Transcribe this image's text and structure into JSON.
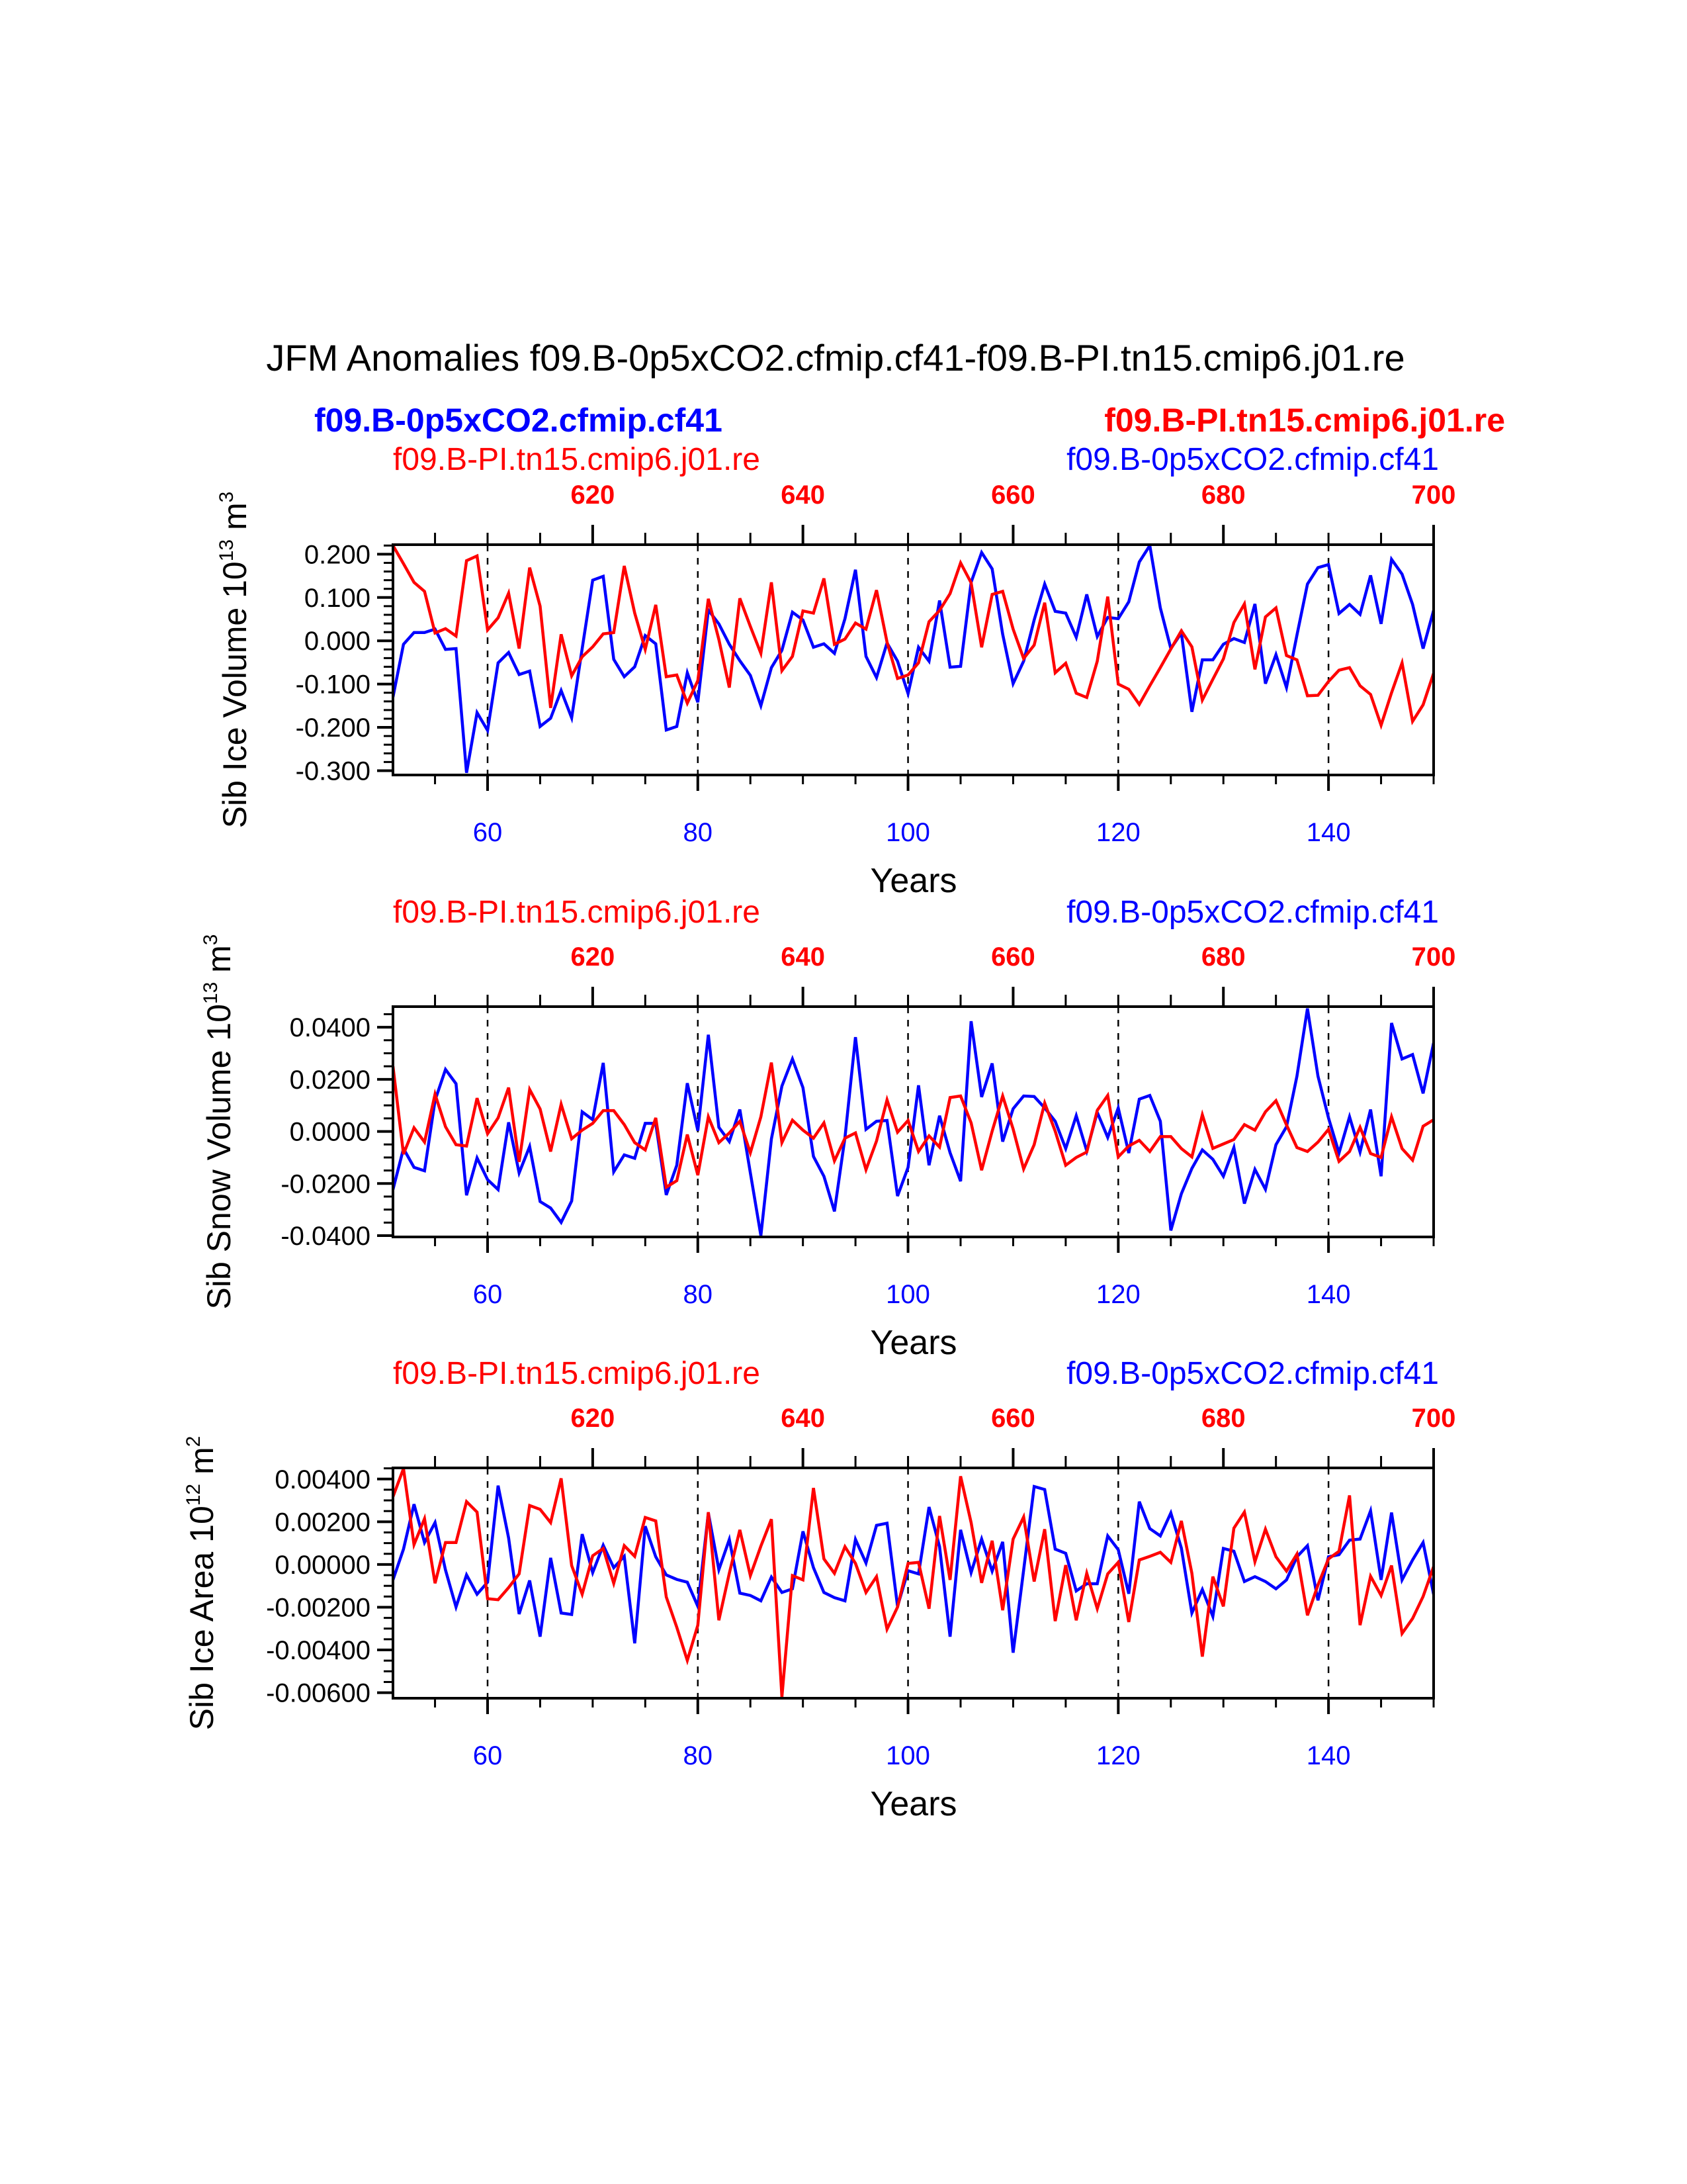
{
  "title": "JFM Anomalies f09.B-0p5xCO2.cfmip.cf41-f09.B-PI.tn15.cmip6.j01.re",
  "colors": {
    "ctrl": "#ff0000",
    "exp": "#0000ff",
    "axis": "#000000"
  },
  "chart_data": [
    {
      "type": "line",
      "x_start": 51,
      "x_end": 150,
      "xlim": [
        51,
        150
      ],
      "xticks": [
        60,
        80,
        100,
        120,
        140
      ],
      "xtick_labels": [
        "60",
        "80",
        "100",
        "120",
        "140"
      ],
      "top_xticks_years": [
        70,
        90,
        110,
        130,
        150
      ],
      "top_xtick_labels": [
        "620",
        "640",
        "660",
        "680",
        "700"
      ],
      "xlabel": "Years",
      "ylabel": {
        "text": "Sib Ice Volume 10",
        "exp1": "13",
        "unit": " m",
        "exp2": "3"
      },
      "ylim": [
        -0.31,
        0.222
      ],
      "yticks": [
        0.2,
        0.1,
        0.0,
        -0.1,
        -0.2,
        -0.3
      ],
      "ytick_labels": [
        "0.200",
        "0.100",
        "0.000",
        "-0.100",
        "-0.200",
        "-0.300"
      ],
      "yminor_step": 0.02,
      "left_label": "f09.B-PI.tn15.cmip6.j01.re",
      "right_label": "f09.B-0p5xCO2.cfmip.cf41",
      "left_bold_label": "f09.B-0p5xCO2.cfmip.cf41",
      "right_bold_label": "f09.B-PI.tn15.cmip6.j01.re",
      "series": [
        {
          "name": "f09.B-0p5xCO2.cfmip.cf41",
          "color": "#0000ff",
          "values": [
            -0.13,
            -0.008,
            0.019,
            0.019,
            0.027,
            -0.02,
            -0.018,
            -0.305,
            -0.166,
            -0.207,
            -0.051,
            -0.027,
            -0.078,
            -0.07,
            -0.198,
            -0.179,
            -0.115,
            -0.178,
            -0.018,
            0.14,
            0.149,
            -0.043,
            -0.083,
            -0.06,
            0.012,
            -0.007,
            -0.206,
            -0.198,
            -0.074,
            -0.142,
            0.071,
            0.039,
            -0.008,
            -0.046,
            -0.08,
            -0.15,
            -0.062,
            -0.022,
            0.066,
            0.048,
            -0.015,
            -0.007,
            -0.029,
            0.051,
            0.164,
            -0.036,
            -0.085,
            -0.005,
            -0.047,
            -0.122,
            -0.015,
            -0.047,
            0.093,
            -0.061,
            -0.059,
            0.135,
            0.204,
            0.166,
            0.015,
            -0.099,
            -0.047,
            0.048,
            0.131,
            0.068,
            0.064,
            0.008,
            0.107,
            0.01,
            0.054,
            0.051,
            0.09,
            0.182,
            0.22,
            0.076,
            -0.018,
            0.018,
            -0.164,
            -0.044,
            -0.044,
            -0.008,
            0.005,
            -0.004,
            0.085,
            -0.099,
            -0.032,
            -0.108,
            0.013,
            0.131,
            0.169,
            0.176,
            0.063,
            0.084,
            0.061,
            0.151,
            0.039,
            0.188,
            0.154,
            0.084,
            -0.018,
            0.07
          ]
        },
        {
          "name": "f09.B-PI.tn15.cmip6.j01.re",
          "color": "#ff0000",
          "values": [
            0.22,
            0.178,
            0.135,
            0.114,
            0.018,
            0.028,
            0.011,
            0.185,
            0.196,
            0.025,
            0.053,
            0.11,
            -0.018,
            0.169,
            0.08,
            -0.155,
            0.015,
            -0.081,
            -0.037,
            -0.014,
            0.016,
            0.019,
            0.173,
            0.064,
            -0.02,
            0.083,
            -0.083,
            -0.079,
            -0.144,
            -0.092,
            0.097,
            0.003,
            -0.108,
            0.098,
            0.033,
            -0.029,
            0.135,
            -0.069,
            -0.036,
            0.069,
            0.064,
            0.144,
            -0.008,
            0.004,
            0.041,
            0.027,
            0.117,
            -0.003,
            -0.087,
            -0.079,
            -0.051,
            0.044,
            0.07,
            0.109,
            0.18,
            0.134,
            -0.015,
            0.107,
            0.114,
            0.027,
            -0.041,
            -0.01,
            0.088,
            -0.074,
            -0.052,
            -0.121,
            -0.131,
            -0.047,
            0.102,
            -0.1,
            -0.112,
            -0.147,
            -0.104,
            -0.062,
            -0.019,
            0.023,
            -0.014,
            -0.137,
            -0.089,
            -0.042,
            0.042,
            0.085,
            -0.066,
            0.055,
            0.076,
            -0.034,
            -0.044,
            -0.127,
            -0.126,
            -0.094,
            -0.068,
            -0.062,
            -0.104,
            -0.124,
            -0.195,
            -0.12,
            -0.051,
            -0.186,
            -0.148,
            -0.075
          ]
        }
      ]
    },
    {
      "type": "line",
      "x_start": 51,
      "x_end": 150,
      "xlim": [
        51,
        150
      ],
      "xticks": [
        60,
        80,
        100,
        120,
        140
      ],
      "xtick_labels": [
        "60",
        "80",
        "100",
        "120",
        "140"
      ],
      "top_xticks_years": [
        70,
        90,
        110,
        130,
        150
      ],
      "top_xtick_labels": [
        "620",
        "640",
        "660",
        "680",
        "700"
      ],
      "xlabel": "Years",
      "ylabel": {
        "text": "Sib Snow Volume 10",
        "exp1": "13",
        "unit": " m",
        "exp2": "3"
      },
      "ylim": [
        -0.0405,
        0.0479
      ],
      "yticks": [
        0.04,
        0.02,
        0.0,
        -0.02,
        -0.04
      ],
      "ytick_labels": [
        "0.0400",
        "0.0200",
        "0.0000",
        "-0.0200",
        "-0.0400"
      ],
      "yminor_step": 0.005,
      "left_label": "f09.B-PI.tn15.cmip6.j01.re",
      "right_label": "f09.B-0p5xCO2.cfmip.cf41",
      "series": [
        {
          "name": "f09.B-0p5xCO2.cfmip.cf41",
          "color": "#0000ff",
          "values": [
            -0.0223,
            -0.0066,
            -0.0138,
            -0.0151,
            0.0119,
            0.0238,
            0.0183,
            -0.0245,
            -0.0102,
            -0.0185,
            -0.0223,
            0.0035,
            -0.0159,
            -0.0058,
            -0.0269,
            -0.0294,
            -0.0349,
            -0.0267,
            0.0075,
            0.0045,
            0.0263,
            -0.0155,
            -0.009,
            -0.0103,
            0.0031,
            0.0031,
            -0.0244,
            -0.013,
            0.0185,
            0.0003,
            0.0371,
            0.0016,
            -0.0039,
            0.0084,
            -0.0159,
            -0.04,
            -0.0029,
            0.0174,
            0.0278,
            0.0168,
            -0.0096,
            -0.0172,
            -0.0307,
            -0.0024,
            0.0362,
            0.0008,
            0.0039,
            0.0042,
            -0.0248,
            -0.0138,
            0.0177,
            -0.013,
            0.006,
            -0.0082,
            -0.0191,
            0.0423,
            0.0132,
            0.0261,
            -0.0039,
            0.0087,
            0.0136,
            0.0134,
            0.009,
            0.0039,
            -0.0066,
            0.006,
            -0.0075,
            0.0073,
            -0.0023,
            0.009,
            -0.0083,
            0.0124,
            0.0138,
            0.0039,
            -0.038,
            -0.0239,
            -0.0142,
            -0.0071,
            -0.0107,
            -0.0172,
            -0.0062,
            -0.0277,
            -0.0146,
            -0.0222,
            -0.0051,
            0.0018,
            0.0212,
            0.0472,
            0.0212,
            0.0052,
            -0.0083,
            0.0056,
            -0.0079,
            0.0084,
            -0.0172,
            0.0416,
            0.0278,
            0.0295,
            0.0146,
            0.034
          ]
        },
        {
          "name": "f09.B-PI.tn15.cmip6.j01.re",
          "color": "#ff0000",
          "values": [
            0.025,
            -0.0087,
            0.0014,
            -0.0041,
            0.0143,
            0.0018,
            -0.0051,
            -0.0056,
            0.0128,
            -0.0009,
            0.0052,
            0.0168,
            -0.0117,
            0.0161,
            0.0086,
            -0.0077,
            0.0104,
            -0.0028,
            0.0005,
            0.0031,
            0.008,
            0.008,
            0.0026,
            -0.0043,
            -0.0071,
            0.0052,
            -0.0214,
            -0.0189,
            -0.0012,
            -0.0168,
            0.0056,
            -0.0043,
            -0.0006,
            0.0039,
            -0.0082,
            0.0056,
            0.0264,
            -0.0043,
            0.0043,
            0.0005,
            -0.0026,
            0.0033,
            -0.0113,
            -0.0026,
            -0.0006,
            -0.0147,
            -0.0037,
            0.0121,
            -0.0003,
            0.0042,
            -0.0077,
            -0.0017,
            -0.006,
            0.013,
            0.0136,
            0.0033,
            -0.0149,
            0.0001,
            0.0136,
            0.0009,
            -0.0144,
            -0.0051,
            0.0109,
            0.0001,
            -0.013,
            -0.01,
            -0.0079,
            0.0081,
            0.0138,
            -0.0098,
            -0.0056,
            -0.0034,
            -0.0077,
            -0.002,
            -0.002,
            -0.0066,
            -0.0098,
            0.0064,
            -0.0065,
            -0.0048,
            -0.0031,
            0.0026,
            0.0005,
            0.0075,
            0.0118,
            0.0025,
            -0.0062,
            -0.0077,
            -0.0041,
            0.0008,
            -0.0115,
            -0.0077,
            0.0016,
            -0.0085,
            -0.01,
            0.0056,
            -0.0066,
            -0.011,
            0.002,
            0.0045
          ]
        }
      ]
    },
    {
      "type": "line",
      "x_start": 51,
      "x_end": 150,
      "xlim": [
        51,
        150
      ],
      "xticks": [
        60,
        80,
        100,
        120,
        140
      ],
      "xtick_labels": [
        "60",
        "80",
        "100",
        "120",
        "140"
      ],
      "top_xticks_years": [
        70,
        90,
        110,
        130,
        150
      ],
      "top_xtick_labels": [
        "620",
        "640",
        "660",
        "680",
        "700"
      ],
      "xlabel": "Years",
      "ylabel": {
        "text": "Sib Ice Area 10",
        "exp1": "12",
        "unit": " m",
        "exp2": "2"
      },
      "ylim": [
        -0.00626,
        0.00452
      ],
      "yticks": [
        0.004,
        0.002,
        0.0,
        -0.002,
        -0.004,
        -0.006
      ],
      "ytick_labels": [
        "0.00400",
        "0.00200",
        "0.00000",
        "-0.00200",
        "-0.00400",
        "-0.00600"
      ],
      "yminor_step": 0.0005,
      "left_label": "f09.B-PI.tn15.cmip6.j01.re",
      "right_label": "f09.B-0p5xCO2.cfmip.cf41",
      "series": [
        {
          "name": "f09.B-0p5xCO2.cfmip.cf41",
          "color": "#0000ff",
          "values": [
            -0.00072,
            0.00072,
            0.00282,
            0.00103,
            0.00196,
            -0.00026,
            -0.00199,
            -0.00049,
            -0.00139,
            -0.00083,
            0.00369,
            0.00124,
            -0.00232,
            -0.00075,
            -0.00338,
            0.00031,
            -0.00227,
            -0.00234,
            0.00142,
            -0.00038,
            0.0009,
            -0.00015,
            0.00038,
            -0.00369,
            0.00179,
            0.00036,
            -0.00049,
            -0.0007,
            -0.00083,
            -0.00196,
            0.00241,
            -0.00024,
            0.00117,
            -0.00134,
            -0.00145,
            -0.0017,
            -0.00059,
            -0.00131,
            -0.00114,
            0.00155,
            -0.00015,
            -0.00131,
            -0.00155,
            -0.0017,
            0.00117,
            7e-05,
            0.00183,
            0.00193,
            -0.00196,
            -0.00029,
            -0.00044,
            0.00269,
            0.00083,
            -0.00338,
            0.00162,
            -0.00038,
            0.00119,
            -0.00031,
            0.00106,
            -0.00413,
            -0.00026,
            0.00365,
            0.00351,
            0.00072,
            0.00052,
            -0.00124,
            -0.0009,
            -0.0009,
            0.00134,
            0.00069,
            -0.00137,
            0.00294,
            0.00168,
            0.00134,
            0.00241,
            0.00077,
            -0.00227,
            -0.00117,
            -0.00243,
            0.00075,
            0.00062,
            -0.0008,
            -0.00057,
            -0.0008,
            -0.00114,
            -0.00072,
            0.00036,
            0.00088,
            -0.00168,
            0.00036,
            0.00046,
            0.00114,
            0.00119,
            0.00251,
            -0.00072,
            0.00243,
            -0.00072,
            0.00021,
            0.00103,
            -0.0014
          ]
        },
        {
          "name": "f09.B-PI.tn15.cmip6.j01.re",
          "color": "#ff0000",
          "values": [
            0.00317,
            0.00449,
            0.00093,
            0.00214,
            -0.00088,
            0.00103,
            0.00103,
            0.00294,
            0.00245,
            -0.0016,
            -0.00165,
            -0.00108,
            -0.00044,
            0.00276,
            0.00258,
            0.00196,
            0.00403,
            -5e-05,
            -0.00139,
            0.00041,
            0.00075,
            -0.00088,
            0.00088,
            0.00038,
            0.0022,
            0.00204,
            -0.00152,
            -0.00294,
            -0.00449,
            -0.00284,
            0.00245,
            -0.00261,
            -0.00041,
            0.00162,
            -0.00052,
            0.00086,
            0.00212,
            -0.0062,
            -0.00052,
            -0.00072,
            0.00358,
            0.00026,
            -0.00041,
            0.00083,
            5e-05,
            -0.00131,
            -0.00057,
            -0.00303,
            -0.00199,
            5e-05,
            0.0001,
            -0.00207,
            0.00227,
            -0.00072,
            0.00413,
            0.00196,
            -0.00086,
            0.00111,
            -0.00214,
            0.00119,
            0.00222,
            -0.0008,
            0.00165,
            -0.00265,
            -3e-05,
            -0.00261,
            -0.00041,
            -0.00207,
            -0.00044,
            0.0001,
            -0.00269,
            0.00021,
            0.00038,
            0.00057,
            0.0001,
            0.00204,
            -0.00041,
            -0.00431,
            -0.00057,
            -0.00196,
            0.0017,
            0.00245,
            0.00013,
            0.00165,
            0.00036,
            -0.00031,
            0.00049,
            -0.00238,
            -0.00096,
            0.00026,
            0.00062,
            0.00323,
            -0.00284,
            -0.00055,
            -0.00145,
            -5e-05,
            -0.00323,
            -0.00253,
            -0.0015,
            -0.0001
          ]
        }
      ]
    }
  ]
}
